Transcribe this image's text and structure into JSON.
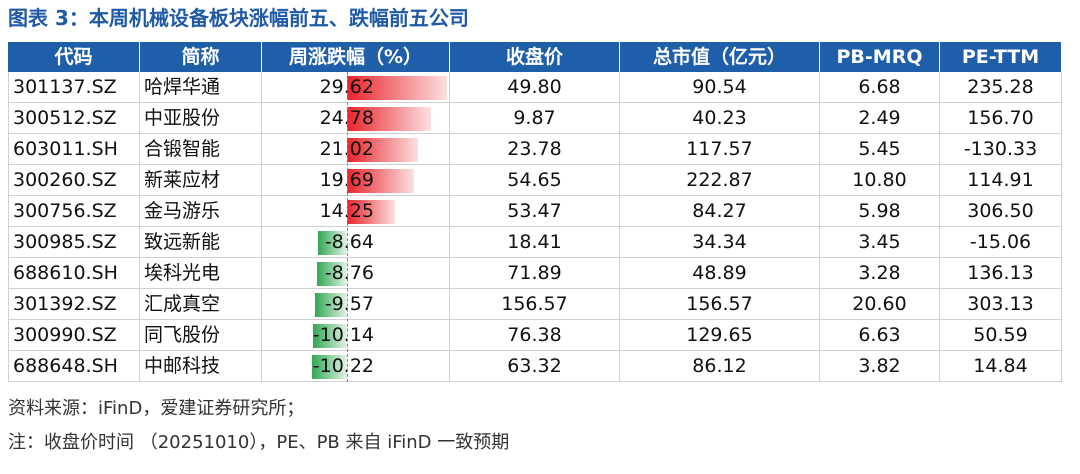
{
  "title": "图表 3：本周机械设备板块涨幅前五、跌幅前五公司",
  "table": {
    "header": [
      "代码",
      "简称",
      "周涨跌幅（%）",
      "收盘价",
      "总市值（亿元）",
      "PB-MRQ",
      "PE-TTM"
    ],
    "rows": [
      [
        "301137.SZ",
        "哈焊华通",
        "29.62",
        "49.80",
        "90.54",
        "6.68",
        "235.28"
      ],
      [
        "300512.SZ",
        "中亚股份",
        "24.78",
        "9.87",
        "40.23",
        "2.49",
        "156.70"
      ],
      [
        "603011.SH",
        "合锻智能",
        "21.02",
        "23.78",
        "117.57",
        "5.45",
        "-130.33"
      ],
      [
        "300260.SZ",
        "新莱应材",
        "19.69",
        "54.65",
        "222.87",
        "10.80",
        "114.91"
      ],
      [
        "300756.SZ",
        "金马游乐",
        "14.25",
        "53.47",
        "84.27",
        "5.98",
        "306.50"
      ],
      [
        "300985.SZ",
        "致远新能",
        "-8.64",
        "18.41",
        "34.34",
        "3.45",
        "-15.06"
      ],
      [
        "688610.SH",
        "埃科光电",
        "-8.76",
        "71.89",
        "48.89",
        "3.28",
        "136.13"
      ],
      [
        "301392.SZ",
        "汇成真空",
        "-9.57",
        "156.57",
        "156.57",
        "20.60",
        "303.13"
      ],
      [
        "300990.SZ",
        "同飞股份",
        "-10.14",
        "76.38",
        "129.65",
        "6.63",
        "50.59"
      ],
      [
        "688648.SH",
        "中邮科技",
        "-10.22",
        "63.32",
        "86.12",
        "3.82",
        "14.84"
      ]
    ]
  },
  "notes": [
    "资料来源：iFinD，爱建证券研究所；",
    "注：收盘价时间 （20251010），PE、PB 来自 iFinD 一致预期"
  ]
}
